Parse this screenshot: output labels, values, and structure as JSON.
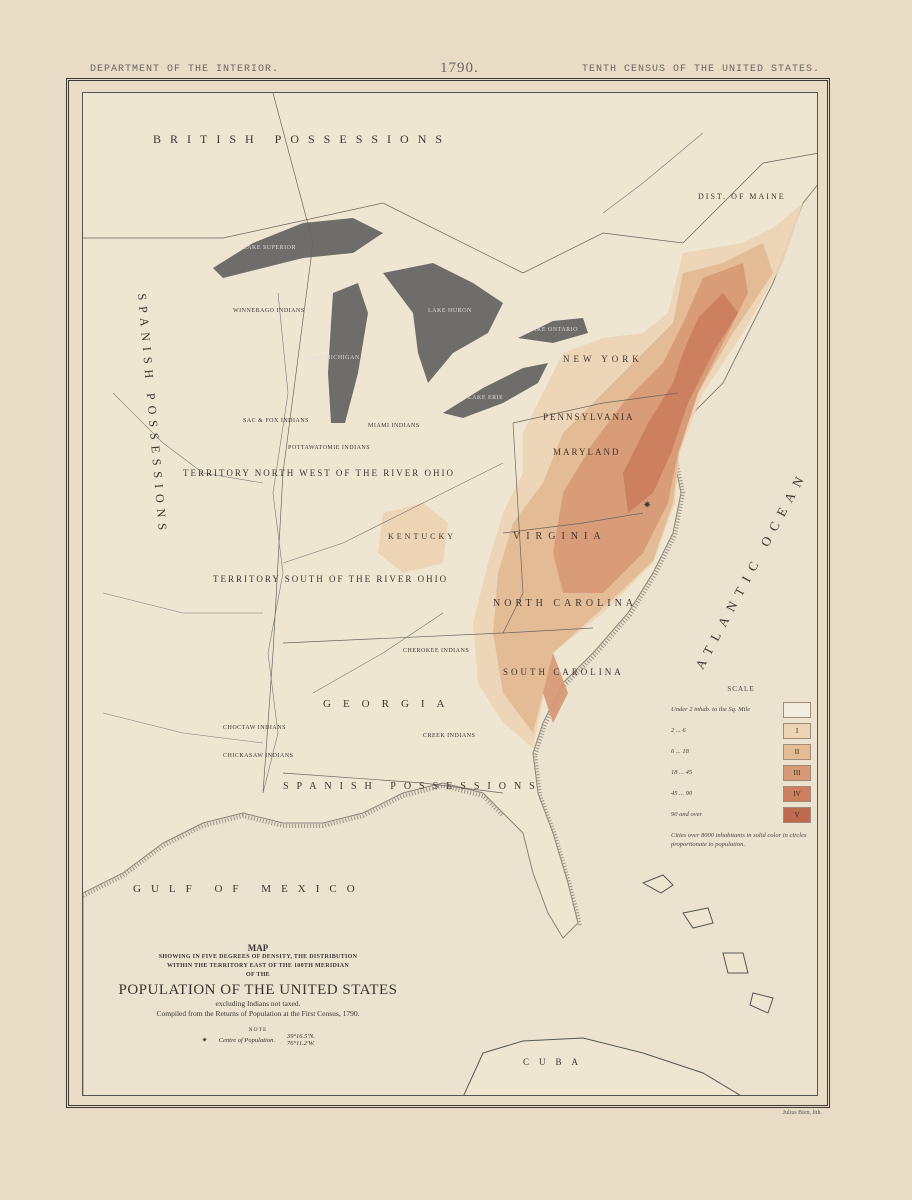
{
  "header": {
    "left": "DEPARTMENT OF THE INTERIOR.",
    "center": "1790.",
    "right": "TENTH CENSUS OF THE UNITED STATES."
  },
  "map": {
    "regions": {
      "british": "BRITISH POSSESSIONS",
      "spanish_west": "SPANISH POSSESSIONS",
      "spanish_south": "SPANISH POSSESSIONS",
      "nw_territory": "TERRITORY NORTH WEST OF THE RIVER OHIO",
      "sw_territory": "TERRITORY SOUTH OF THE RIVER OHIO",
      "maine": "DIST. OF MAINE",
      "new_york": "NEW YORK",
      "pennsylvania": "PENNSYLVANIA",
      "maryland": "MARYLAND",
      "virginia": "VIRGINIA",
      "kentucky": "KENTUCKY",
      "north_carolina": "NORTH CAROLINA",
      "south_carolina": "SOUTH CAROLINA",
      "georgia": "GEORGIA"
    },
    "waters": {
      "atlantic": "ATLANTIC OCEAN",
      "gulf": "GULF OF MEXICO",
      "superior": "LAKE SUPERIOR",
      "michigan": "LAKE MICHIGAN",
      "huron": "LAKE HURON",
      "erie": "LAKE ERIE",
      "ontario": "LAKE ONTARIO"
    },
    "cuba": "CUBA",
    "tribes": [
      "WINNEBAGO INDIANS",
      "SAC & FOX INDIANS",
      "POTTAWATOMIE INDIANS",
      "MIAMI INDIANS",
      "CHOCTAW INDIANS",
      "CHICKASAW INDIANS",
      "CHEROKEE INDIANS",
      "CREEK INDIANS"
    ]
  },
  "legend": {
    "title": "SCALE",
    "items": [
      {
        "range": "Under 2 inhab. to the Sq. Mile",
        "grade": "",
        "color": "#f3ece0"
      },
      {
        "range": "2 ... 6",
        "grade": "I",
        "color": "#ecd4b4"
      },
      {
        "range": "6 ... 18",
        "grade": "II",
        "color": "#e3bb94"
      },
      {
        "range": "18 ... 45",
        "grade": "III",
        "color": "#d79a76"
      },
      {
        "range": "45 ... 90",
        "grade": "IV",
        "color": "#cc8060"
      },
      {
        "range": "90 and over",
        "grade": "V",
        "color": "#bf6a4e"
      }
    ],
    "note": "Cities over 8000 inhabitants in solid color in circles proportionate to population."
  },
  "title_block": {
    "map": "MAP",
    "sub1": "SHOWING IN FIVE DEGREES OF DENSITY, THE DISTRIBUTION",
    "sub2": "WITHIN THE TERRITORY EAST OF THE 100TH MERIDIAN",
    "sub3": "OF THE",
    "main": "POPULATION OF THE UNITED STATES",
    "excl": "excluding Indians not taxed.",
    "compiled": "Compiled from the Returns of Population at the First Census, 1790.",
    "note_label": "NOTE",
    "centre_label": "Centre of Population.",
    "lat": "39°16.5'N.",
    "lon": "76°11.2'W."
  },
  "footer": "Julius Bien, lith."
}
